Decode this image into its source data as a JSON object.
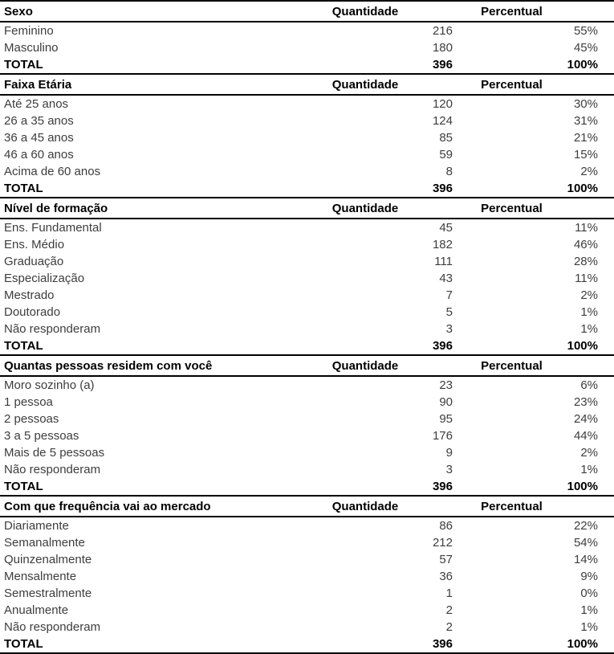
{
  "table": {
    "columns": {
      "quantity": "Quantidade",
      "percent": "Percentual"
    },
    "total_label": "TOTAL",
    "sections": [
      {
        "title": "Sexo",
        "rows": [
          {
            "label": "Feminino",
            "quantity": "216",
            "percent": "55%"
          },
          {
            "label": "Masculino",
            "quantity": "180",
            "percent": "45%"
          }
        ],
        "total": {
          "quantity": "396",
          "percent": "100%"
        }
      },
      {
        "title": "Faixa Etária",
        "rows": [
          {
            "label": "Até 25 anos",
            "quantity": "120",
            "percent": "30%"
          },
          {
            "label": "26 a 35 anos",
            "quantity": "124",
            "percent": "31%"
          },
          {
            "label": "36 a 45 anos",
            "quantity": "85",
            "percent": "21%"
          },
          {
            "label": "46 a 60 anos",
            "quantity": "59",
            "percent": "15%"
          },
          {
            "label": "Acima de 60 anos",
            "quantity": "8",
            "percent": "2%"
          }
        ],
        "total": {
          "quantity": "396",
          "percent": "100%"
        }
      },
      {
        "title": "Nível de formação",
        "rows": [
          {
            "label": "Ens. Fundamental",
            "quantity": "45",
            "percent": "11%"
          },
          {
            "label": "Ens. Médio",
            "quantity": "182",
            "percent": "46%"
          },
          {
            "label": "Graduação",
            "quantity": "111",
            "percent": "28%"
          },
          {
            "label": "Especialização",
            "quantity": "43",
            "percent": "11%"
          },
          {
            "label": "Mestrado",
            "quantity": "7",
            "percent": "2%"
          },
          {
            "label": "Doutorado",
            "quantity": "5",
            "percent": "1%"
          },
          {
            "label": "Não responderam",
            "quantity": "3",
            "percent": "1%"
          }
        ],
        "total": {
          "quantity": "396",
          "percent": "100%"
        }
      },
      {
        "title": "Quantas pessoas residem com você",
        "rows": [
          {
            "label": "Moro sozinho (a)",
            "quantity": "23",
            "percent": "6%"
          },
          {
            "label": "1 pessoa",
            "quantity": "90",
            "percent": "23%"
          },
          {
            "label": "2 pessoas",
            "quantity": "95",
            "percent": "24%"
          },
          {
            "label": "3 a 5 pessoas",
            "quantity": "176",
            "percent": "44%"
          },
          {
            "label": "Mais de 5 pessoas",
            "quantity": "9",
            "percent": "2%"
          },
          {
            "label": "Não responderam",
            "quantity": "3",
            "percent": "1%"
          }
        ],
        "total": {
          "quantity": "396",
          "percent": "100%"
        }
      },
      {
        "title": "Com que frequência vai ao mercado",
        "rows": [
          {
            "label": "Diariamente",
            "quantity": "86",
            "percent": "22%"
          },
          {
            "label": "Semanalmente",
            "quantity": "212",
            "percent": "54%"
          },
          {
            "label": "Quinzenalmente",
            "quantity": "57",
            "percent": "14%"
          },
          {
            "label": "Mensalmente",
            "quantity": "36",
            "percent": "9%"
          },
          {
            "label": "Semestralmente",
            "quantity": "1",
            "percent": "0%"
          },
          {
            "label": "Anualmente",
            "quantity": "2",
            "percent": "1%"
          },
          {
            "label": "Não responderam",
            "quantity": "2",
            "percent": "1%"
          }
        ],
        "total": {
          "quantity": "396",
          "percent": "100%"
        }
      }
    ]
  }
}
